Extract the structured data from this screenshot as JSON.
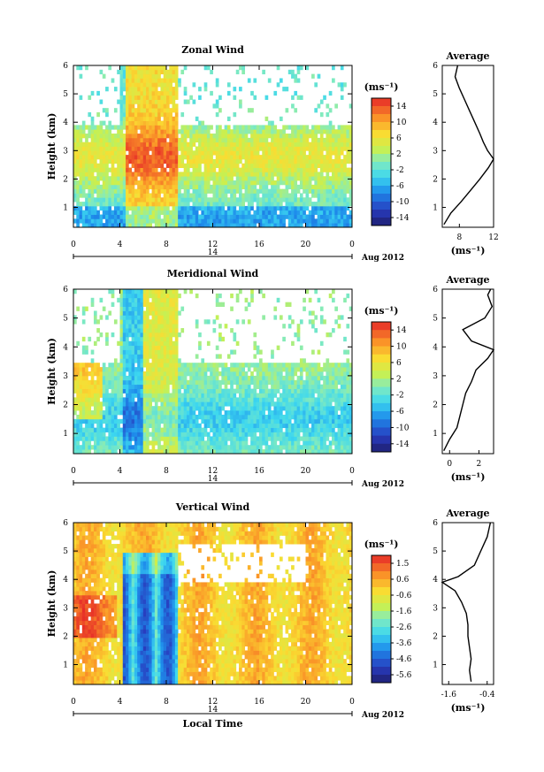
{
  "chart_data": [
    {
      "type": "heatmap",
      "title": "Zonal Wind",
      "ylabel": "Height (km)",
      "xlim": [
        0,
        24
      ],
      "ylim": [
        0.3,
        6
      ],
      "x_ticks": [
        "0",
        "4",
        "8",
        "12",
        "16",
        "20",
        "0"
      ],
      "y_ticks": [
        "1",
        "2",
        "3",
        "4",
        "5",
        "6"
      ],
      "date_marker": "14",
      "date_label": "Aug 2012",
      "colorbar": {
        "unit": "(ms⁻¹)",
        "ticks": [
          "14",
          "10",
          "6",
          "2",
          "-2",
          "-6",
          "-10",
          "-14"
        ],
        "range": [
          -16,
          16
        ]
      },
      "profile": {
        "title": "Average",
        "xlabel": "(ms⁻¹)",
        "x_ticks": [
          "8",
          "12"
        ],
        "xlim": [
          6,
          12
        ],
        "y_ticks": [
          "1",
          "2",
          "3",
          "4",
          "5",
          "6"
        ],
        "heights": [
          0.4,
          0.8,
          1.2,
          1.6,
          2.0,
          2.4,
          2.7,
          3.0,
          3.3,
          3.6,
          4.0,
          4.4,
          4.8,
          5.2,
          5.6,
          6.0
        ],
        "values": [
          6.2,
          7.0,
          8.2,
          9.3,
          10.4,
          11.4,
          12.0,
          11.3,
          10.8,
          10.4,
          9.8,
          9.2,
          8.6,
          8.0,
          7.5,
          7.8
        ]
      }
    },
    {
      "type": "heatmap",
      "title": "Meridional Wind",
      "ylabel": "Height (km)",
      "xlim": [
        0,
        24
      ],
      "ylim": [
        0.3,
        6
      ],
      "x_ticks": [
        "0",
        "4",
        "8",
        "12",
        "16",
        "20",
        "0"
      ],
      "y_ticks": [
        "1",
        "2",
        "3",
        "4",
        "5",
        "6"
      ],
      "date_marker": "14",
      "date_label": "Aug 2012",
      "colorbar": {
        "unit": "(ms⁻¹)",
        "ticks": [
          "14",
          "10",
          "6",
          "2",
          "-2",
          "-6",
          "-10",
          "-14"
        ],
        "range": [
          -16,
          16
        ]
      },
      "profile": {
        "title": "Average",
        "xlabel": "(ms⁻¹)",
        "x_ticks": [
          "0",
          "2"
        ],
        "xlim": [
          -0.5,
          3
        ],
        "y_ticks": [
          "1",
          "2",
          "3",
          "4",
          "5",
          "6"
        ],
        "heights": [
          0.4,
          0.8,
          1.2,
          1.6,
          2.0,
          2.4,
          2.8,
          3.2,
          3.6,
          3.9,
          4.2,
          4.6,
          5.0,
          5.4,
          5.8,
          6.0
        ],
        "values": [
          -0.4,
          0.0,
          0.5,
          0.7,
          0.9,
          1.1,
          1.5,
          1.8,
          2.6,
          3.0,
          1.5,
          0.9,
          2.4,
          2.9,
          2.6,
          2.8
        ]
      }
    },
    {
      "type": "heatmap",
      "title": "Vertical Wind",
      "ylabel": "Height (km)",
      "xlabel": "Local Time",
      "xlim": [
        0,
        24
      ],
      "ylim": [
        0.3,
        6
      ],
      "x_ticks": [
        "0",
        "4",
        "8",
        "12",
        "16",
        "20",
        "0"
      ],
      "y_ticks": [
        "1",
        "2",
        "3",
        "4",
        "5",
        "6"
      ],
      "date_marker": "14",
      "date_label": "Aug 2012",
      "colorbar": {
        "unit": "(ms⁻¹)",
        "ticks": [
          "1.5",
          "0.6",
          "-0.6",
          "-1.6",
          "-2.6",
          "-3.6",
          "-4.6",
          "-5.6"
        ],
        "range": [
          -6.4,
          2.0
        ]
      },
      "profile": {
        "title": "Average",
        "xlabel": "(ms⁻¹)",
        "x_ticks": [
          "-1.6",
          "-0.4"
        ],
        "xlim": [
          -1.8,
          -0.2
        ],
        "y_ticks": [
          "1",
          "2",
          "3",
          "4",
          "5",
          "6"
        ],
        "heights": [
          0.4,
          0.8,
          1.2,
          1.6,
          2.0,
          2.4,
          2.8,
          3.2,
          3.6,
          3.9,
          4.1,
          4.5,
          5.0,
          5.5,
          6.0
        ],
        "values": [
          -0.9,
          -0.95,
          -0.9,
          -0.95,
          -1.0,
          -1.0,
          -1.05,
          -1.2,
          -1.4,
          -1.8,
          -1.3,
          -0.8,
          -0.6,
          -0.4,
          -0.3
        ]
      }
    }
  ]
}
